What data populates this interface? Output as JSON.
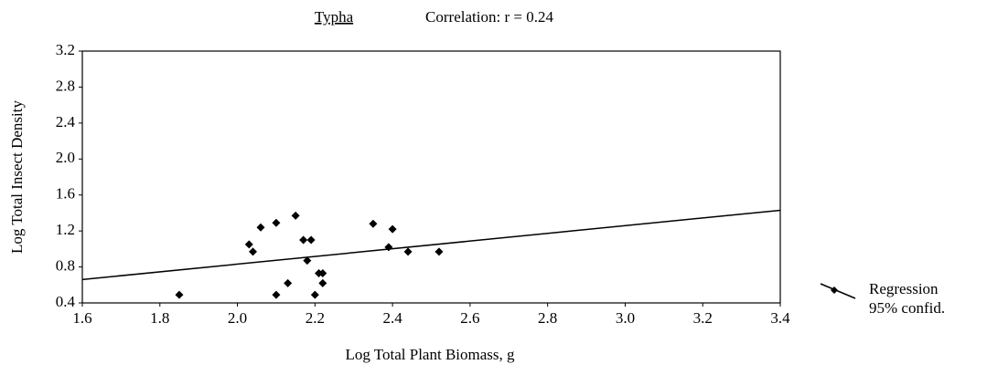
{
  "chart_data": {
    "type": "scatter",
    "title": "Typha",
    "subtitle": "Correlation: r = 0.24",
    "xlabel": "Log Total Plant Biomass, g",
    "ylabel": "Log Total Insect Density",
    "x": [
      1.85,
      2.03,
      2.04,
      2.06,
      2.1,
      2.15,
      2.1,
      2.13,
      2.17,
      2.19,
      2.18,
      2.21,
      2.22,
      2.22,
      2.2,
      2.35,
      2.4,
      2.39,
      2.44,
      2.52
    ],
    "y": [
      0.49,
      1.05,
      0.97,
      1.24,
      1.29,
      1.37,
      0.49,
      0.62,
      1.1,
      1.1,
      0.87,
      0.73,
      0.73,
      0.62,
      0.49,
      1.28,
      1.22,
      1.02,
      0.97,
      0.97
    ],
    "color": "#000000",
    "regression": {
      "name": "Regression",
      "x": [
        1.6,
        3.4
      ],
      "y": [
        0.66,
        1.43
      ]
    },
    "confidence_name": "95% confid.",
    "xlim": [
      1.6,
      3.4
    ],
    "xticks": [
      1.6,
      1.8,
      {
        "value": 2,
        "label": "2.0"
      },
      2.2,
      2.4,
      2.6,
      2.8,
      {
        "value": 3,
        "label": "3.0"
      },
      3.2,
      3.4
    ],
    "ylim": [
      0.4,
      3.2
    ],
    "yticks": [
      0.4,
      0.8,
      1.2,
      1.6,
      {
        "value": 2,
        "label": "2.0"
      },
      2.4,
      2.8,
      3.2
    ]
  }
}
